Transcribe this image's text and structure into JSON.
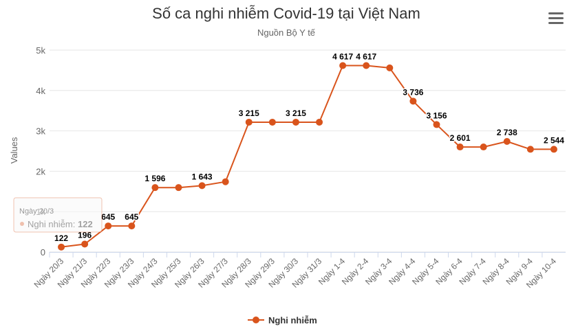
{
  "chart_data": {
    "type": "line",
    "title": "Số ca nghi nhiễm Covid-19 tại Việt Nam",
    "subtitle": "Nguồn Bộ Y tế",
    "ylabel": "Values",
    "ylim": [
      0,
      5000
    ],
    "yticks": [
      {
        "value": 0,
        "label": "0"
      },
      {
        "value": 1000,
        "label": "1k"
      },
      {
        "value": 2000,
        "label": "2k"
      },
      {
        "value": 3000,
        "label": "3k"
      },
      {
        "value": 4000,
        "label": "4k"
      },
      {
        "value": 5000,
        "label": "5k"
      }
    ],
    "grid": true,
    "legend_position": "bottom-center",
    "color": "#d9541c",
    "categories": [
      "Ngày 20/3",
      "Ngày 21/3",
      "Ngày 22/3",
      "Ngày 23/3",
      "Ngày 24/3",
      "Ngày 25/3",
      "Ngày 26/3",
      "Ngày 27/3",
      "Ngày 28/3",
      "Ngày 29/3",
      "Ngày 30/3",
      "Ngày 31/3",
      "Ngày 1-4",
      "Ngày 2-4",
      "Ngày 3-4",
      "Ngày 4-4",
      "Ngày 5-4",
      "Ngày 6-4",
      "Ngày 7-4",
      "Ngày 8-4",
      "Ngày 9-4",
      "Ngày 10-4"
    ],
    "series": [
      {
        "name": "Nghi nhiễm",
        "values": [
          122,
          196,
          645,
          645,
          1596,
          1596,
          1643,
          1740,
          3215,
          3215,
          3215,
          3215,
          4617,
          4617,
          4560,
          3736,
          3156,
          2601,
          2601,
          2738,
          2544,
          2544
        ],
        "labels": [
          "122",
          "196",
          "645",
          "645",
          "1 596",
          "",
          "1 643",
          "",
          "3 215",
          "",
          "3 215",
          "",
          "4 617",
          "4 617",
          "",
          "3 736",
          "3 156",
          "2 601",
          "",
          "2 738",
          "",
          "2 544"
        ]
      }
    ],
    "tooltip": {
      "title": "Ngày 20/3",
      "series": "Nghi nhiễm: ",
      "value": "122"
    }
  },
  "menu": {
    "icon": "hamburger-icon"
  }
}
